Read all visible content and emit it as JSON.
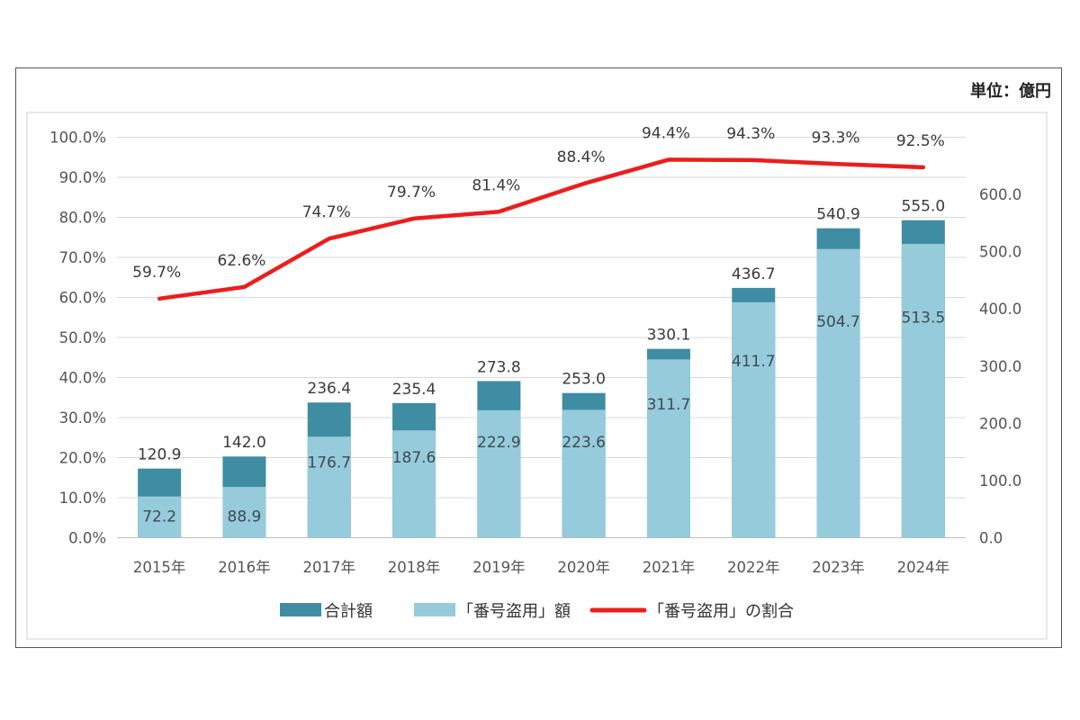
{
  "unit_label": "単位：億円",
  "chart_data": {
    "type": "bar",
    "categories": [
      "2015年",
      "2016年",
      "2017年",
      "2018年",
      "2019年",
      "2020年",
      "2021年",
      "2022年",
      "2023年",
      "2024年"
    ],
    "series": [
      {
        "name": "合計額",
        "type": "stacked-bar-total",
        "axis": "right",
        "color": "#3e8da3",
        "values": [
          120.9,
          142.0,
          236.4,
          235.4,
          273.8,
          253.0,
          330.1,
          436.7,
          540.9,
          555.0
        ],
        "labels": [
          "120.9",
          "142.0",
          "236.4",
          "235.4",
          "273.8",
          "253.0",
          "330.1",
          "436.7",
          "540.9",
          "555.0"
        ]
      },
      {
        "name": "「番号盗用」額",
        "type": "bar",
        "axis": "right",
        "color": "#96cbdb",
        "values": [
          72.2,
          88.9,
          176.7,
          187.6,
          222.9,
          223.6,
          311.7,
          411.7,
          504.7,
          513.5
        ],
        "labels": [
          "72.2",
          "88.9",
          "176.7",
          "187.6",
          "222.9",
          "223.6",
          "311.7",
          "411.7",
          "504.7",
          "513.5"
        ]
      },
      {
        "name": "「番号盗用」の割合",
        "type": "line",
        "axis": "left",
        "color": "#ee1c1c",
        "values": [
          59.7,
          62.6,
          74.7,
          79.7,
          81.4,
          88.4,
          94.4,
          94.3,
          93.3,
          92.5
        ],
        "labels": [
          "59.7%",
          "62.6%",
          "74.7%",
          "79.7%",
          "81.4%",
          "88.4%",
          "94.4%",
          "94.3%",
          "93.3%",
          "92.5%"
        ]
      }
    ],
    "left_axis": {
      "min": 0,
      "max": 100,
      "ticks": [
        "0.0%",
        "10.0%",
        "20.0%",
        "30.0%",
        "40.0%",
        "50.0%",
        "60.0%",
        "70.0%",
        "80.0%",
        "90.0%",
        "100.0%"
      ]
    },
    "right_axis": {
      "min": 0,
      "max": 700,
      "ticks": [
        "0.0",
        "100.0",
        "200.0",
        "300.0",
        "400.0",
        "500.0",
        "600.0"
      ]
    },
    "grid": true,
    "legend": "bottom"
  }
}
